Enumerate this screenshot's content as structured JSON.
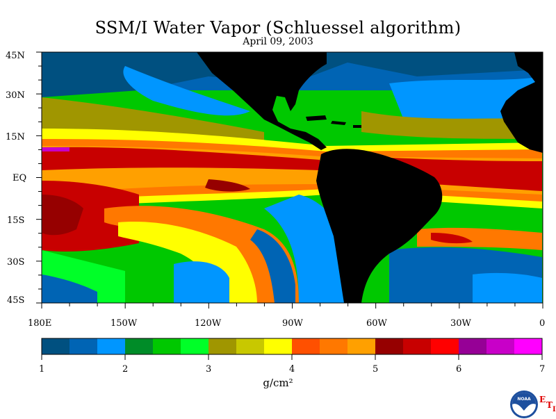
{
  "title": "SSM/I Water Vapor (Schluessel algorithm)",
  "subtitle": "April 09, 2003",
  "lat_labels": [
    "45N",
    "30N",
    "15N",
    "EQ",
    "15S",
    "30S",
    "45S"
  ],
  "lon_labels": [
    "180E",
    "150W",
    "120W",
    "90W",
    "60W",
    "30W",
    "0"
  ],
  "colorbar": {
    "tick_labels": [
      "1",
      "2",
      "3",
      "4",
      "5",
      "6",
      "7"
    ],
    "unit": "g/cm²",
    "colors": [
      "#005080",
      "#0064b4",
      "#0096ff",
      "#008c28",
      "#00c800",
      "#00ff28",
      "#a09600",
      "#c8c800",
      "#ffff00",
      "#ff5000",
      "#ff7800",
      "#ffa000",
      "#960000",
      "#c80000",
      "#ff0000",
      "#960096",
      "#c800c8",
      "#ff00ff"
    ]
  },
  "land_color": "#000000",
  "logo": {
    "name": "noaa-logo",
    "text": "NOAA"
  },
  "eti": {
    "e": "E",
    "t": "T",
    "i": "I"
  }
}
